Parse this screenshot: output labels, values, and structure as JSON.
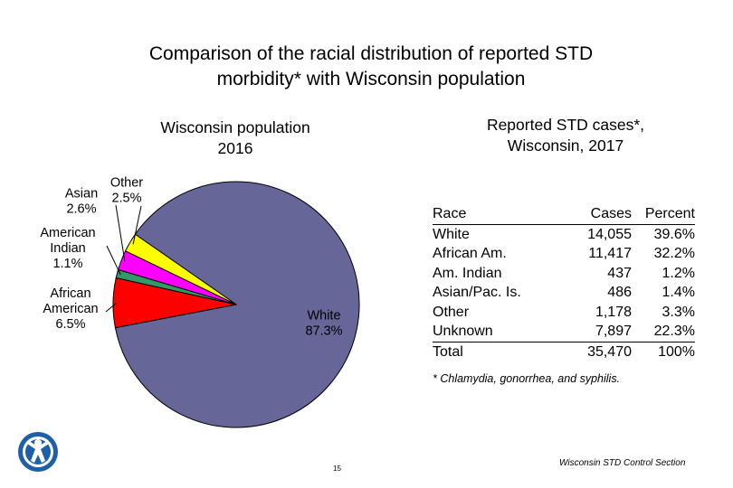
{
  "title": {
    "line1": "Comparison of the racial distribution of reported STD",
    "line2": "morbidity* with Wisconsin population"
  },
  "left_subtitle": {
    "line1": "Wisconsin population",
    "line2": "2016"
  },
  "right_subtitle": {
    "line1": "Reported STD cases*,",
    "line2": "Wisconsin, 2017"
  },
  "chart_data": [
    {
      "type": "pie",
      "title": "Wisconsin population 2016",
      "categories": [
        "White",
        "African American",
        "American Indian",
        "Asian",
        "Other"
      ],
      "values": [
        87.3,
        6.5,
        1.1,
        2.6,
        2.5
      ],
      "units": "%",
      "labels": [
        {
          "name": "White",
          "value": "87.3%"
        },
        {
          "name": "African American",
          "value": "6.5%"
        },
        {
          "name": "American Indian",
          "value": "1.1%"
        },
        {
          "name": "Asian",
          "value": "2.6%"
        },
        {
          "name": "Other",
          "value": "2.5%"
        }
      ],
      "colors": [
        "#666699",
        "#ff0000",
        "#339966",
        "#ff00ff",
        "#ffff00"
      ],
      "legend": "none"
    },
    {
      "type": "table",
      "title": "Reported STD cases*, Wisconsin, 2017",
      "columns": [
        "Race",
        "Cases",
        "Percent"
      ],
      "rows": [
        [
          "White",
          "14,055",
          "39.6%"
        ],
        [
          "African Am.",
          "11,417",
          "32.2%"
        ],
        [
          "Am. Indian",
          "437",
          "1.2%"
        ],
        [
          "Asian/Pac. Is.",
          "486",
          "1.4%"
        ],
        [
          "Other",
          "1,178",
          "3.3%"
        ],
        [
          "Unknown",
          "7,897",
          "22.3%"
        ]
      ],
      "total": [
        "Total",
        "35,470",
        "100%"
      ]
    }
  ],
  "footnote": "* Chlamydia, gonorrhea, and syphilis.",
  "page_number": "15",
  "footer": "Wisconsin STD Control Section",
  "colors": {
    "outline": "#000000",
    "background": "#ffffff",
    "logo": "#1f5fa8"
  }
}
